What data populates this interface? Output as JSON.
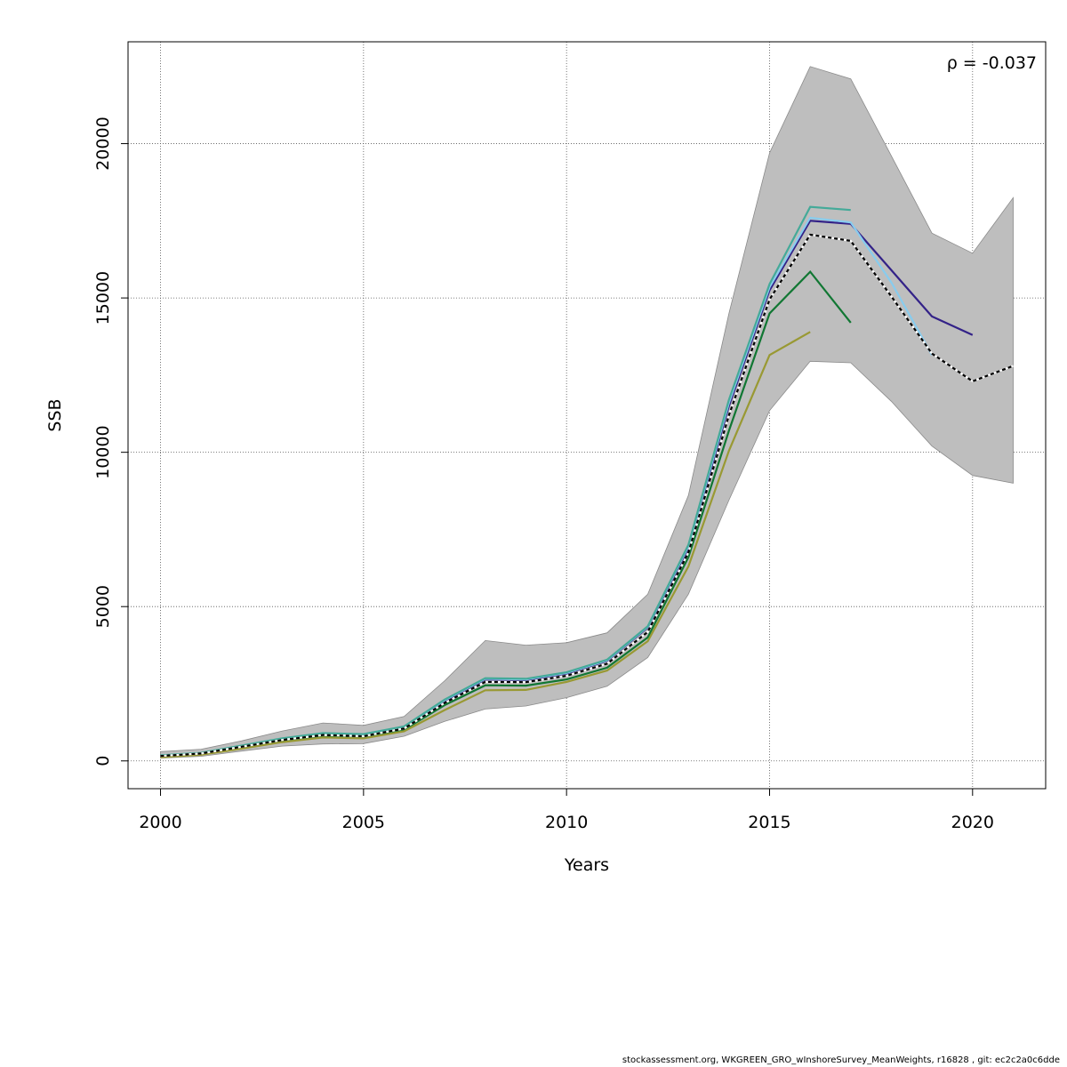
{
  "footer": "stockassessment.org, WKGREEN_GRO_wInshoreSurvey_MeanWeights, r16828 , git: ec2c2a0c6dde",
  "chart_data": {
    "type": "line",
    "xlabel": "Years",
    "ylabel": "SSB",
    "xlim": [
      1999.2,
      2021.8
    ],
    "ylim": [
      -900,
      23300
    ],
    "xticks": [
      2000,
      2005,
      2010,
      2015,
      2020
    ],
    "yticks": [
      0,
      5000,
      10000,
      15000,
      20000
    ],
    "grid": true,
    "annotation": "ρ = -0.037",
    "band": {
      "color": "#bebebe",
      "x": [
        2000,
        2001,
        2002,
        2003,
        2004,
        2005,
        2006,
        2007,
        2008,
        2009,
        2010,
        2011,
        2012,
        2013,
        2014,
        2015,
        2016,
        2017,
        2018,
        2019,
        2020,
        2021
      ],
      "upper": [
        300,
        380,
        650,
        970,
        1230,
        1150,
        1440,
        2600,
        3900,
        3750,
        3830,
        4150,
        5400,
        8600,
        14500,
        19700,
        22500,
        22100,
        19600,
        17100,
        16450,
        18250
      ],
      "lower": [
        90,
        150,
        320,
        480,
        550,
        560,
        800,
        1280,
        1680,
        1780,
        2050,
        2420,
        3350,
        5400,
        8450,
        11350,
        12950,
        12900,
        11650,
        10200,
        9250,
        9000
      ]
    },
    "series": [
      {
        "color": "#000000",
        "dashed": true,
        "x": [
          2000,
          2001,
          2002,
          2003,
          2004,
          2005,
          2006,
          2007,
          2008,
          2009,
          2010,
          2011,
          2012,
          2013,
          2014,
          2015,
          2016,
          2017,
          2018,
          2019,
          2020,
          2021
        ],
        "values": [
          160,
          240,
          460,
          680,
          840,
          800,
          1050,
          1880,
          2560,
          2550,
          2760,
          3150,
          4180,
          6750,
          11200,
          14950,
          17050,
          16850,
          15050,
          13200,
          12300,
          12800
        ]
      },
      {
        "color": "#332288",
        "x": [
          2000,
          2001,
          2002,
          2003,
          2004,
          2005,
          2006,
          2007,
          2008,
          2009,
          2010,
          2011,
          2012,
          2013,
          2014,
          2015,
          2016,
          2017,
          2018,
          2019,
          2020
        ],
        "values": [
          170,
          250,
          480,
          710,
          880,
          850,
          1100,
          1950,
          2640,
          2620,
          2830,
          3240,
          4320,
          6900,
          11500,
          15250,
          17500,
          17400,
          15900,
          14400,
          13800
        ]
      },
      {
        "color": "#88ccee",
        "x": [
          2000,
          2001,
          2002,
          2003,
          2004,
          2005,
          2006,
          2007,
          2008,
          2009,
          2010,
          2011,
          2012,
          2013,
          2014,
          2015,
          2016,
          2017,
          2018,
          2019
        ],
        "values": [
          175,
          255,
          490,
          720,
          890,
          860,
          1110,
          1970,
          2660,
          2640,
          2850,
          3260,
          4340,
          6950,
          11600,
          15350,
          17600,
          17450,
          15500,
          13150
        ]
      },
      {
        "color": "#44aa99",
        "x": [
          2000,
          2001,
          2002,
          2003,
          2004,
          2005,
          2006,
          2007,
          2008,
          2009,
          2010,
          2011,
          2012,
          2013,
          2014,
          2015,
          2016,
          2017
        ],
        "values": [
          180,
          260,
          500,
          730,
          900,
          870,
          1120,
          1990,
          2680,
          2660,
          2870,
          3280,
          4360,
          7000,
          11700,
          15450,
          17950,
          17850
        ]
      },
      {
        "color": "#117733",
        "x": [
          2000,
          2001,
          2002,
          2003,
          2004,
          2005,
          2006,
          2007,
          2008,
          2009,
          2010,
          2011,
          2012,
          2013,
          2014,
          2015,
          2016,
          2017
        ],
        "values": [
          150,
          230,
          440,
          660,
          810,
          780,
          1010,
          1810,
          2450,
          2440,
          2640,
          3020,
          4000,
          6600,
          10700,
          14500,
          15850,
          14200
        ]
      },
      {
        "color": "#999933",
        "x": [
          2000,
          2001,
          2002,
          2003,
          2004,
          2005,
          2006,
          2007,
          2008,
          2009,
          2010,
          2011,
          2012,
          2013,
          2014,
          2015,
          2016
        ],
        "values": [
          120,
          200,
          400,
          610,
          760,
          730,
          960,
          1650,
          2290,
          2300,
          2560,
          2930,
          3880,
          6300,
          10050,
          13150,
          13900
        ]
      }
    ]
  }
}
